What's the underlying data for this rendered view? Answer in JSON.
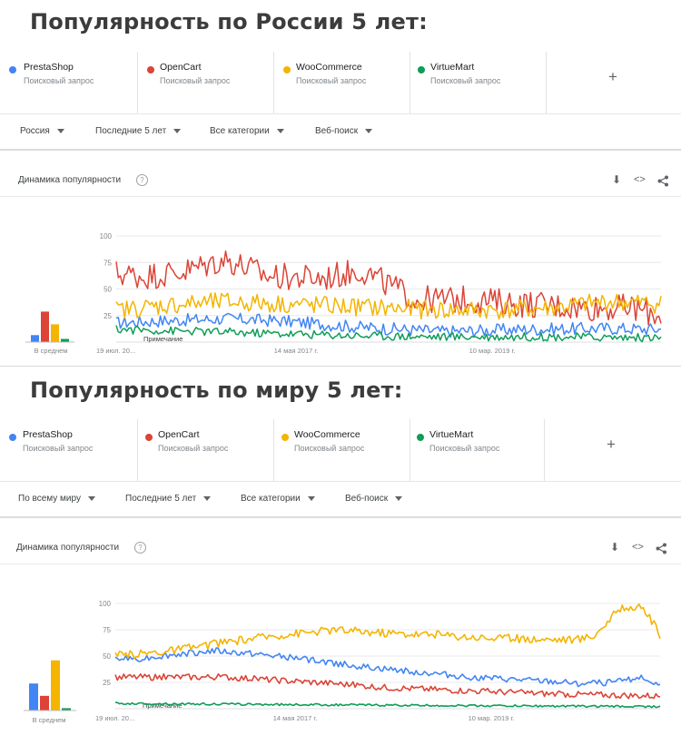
{
  "panels": [
    {
      "heading": "Популярность по России 5 лет:",
      "terms": [
        {
          "name": "PrestaShop",
          "sub": "Поисковый запрос",
          "color": "#4285f4"
        },
        {
          "name": "OpenCart",
          "sub": "Поисковый запрос",
          "color": "#db4437"
        },
        {
          "name": "WooCommerce",
          "sub": "Поисковый запрос",
          "color": "#f4b400"
        },
        {
          "name": "VirtueMart",
          "sub": "Поисковый запрос",
          "color": "#0f9d58"
        }
      ],
      "add_label": "+",
      "filters": [
        "Россия",
        "Последние 5 лет",
        "Все категории",
        "Веб-поиск"
      ],
      "card_title": "Динамика популярности",
      "help_icon": "?",
      "tools": {
        "download": "⬇",
        "embed": "<>",
        "share": "share-icon"
      },
      "avg_label": "В среднем",
      "note": "Примечание"
    },
    {
      "heading": "Популярность по миру 5 лет:",
      "terms": [
        {
          "name": "PrestaShop",
          "sub": "Поисковый запрос",
          "color": "#4285f4"
        },
        {
          "name": "OpenCart",
          "sub": "Поисковый запрос",
          "color": "#db4437"
        },
        {
          "name": "WooCommerce",
          "sub": "Поисковый запрос",
          "color": "#f4b400"
        },
        {
          "name": "VirtueMart",
          "sub": "Поисковый запрос",
          "color": "#0f9d58"
        }
      ],
      "add_label": "+",
      "filters": [
        "По всему миру",
        "Последние 5 лет",
        "Все категории",
        "Веб-поиск"
      ],
      "card_title": "Динамика популярности",
      "help_icon": "?",
      "tools": {
        "download": "⬇",
        "embed": "<>",
        "share": "share-icon"
      },
      "avg_label": "В среднем",
      "note": "Примечание"
    }
  ],
  "chart_data": [
    {
      "type": "line",
      "ylim": [
        0,
        100
      ],
      "yticks": [
        25,
        50,
        75,
        100
      ],
      "xticks": [
        "19 июл. 20...",
        "14 мая 2017 г.",
        "10 мар. 2019 г."
      ],
      "averages": [
        {
          "name": "PrestaShop",
          "value": 11
        },
        {
          "name": "OpenCart",
          "value": 48
        },
        {
          "name": "WooCommerce",
          "value": 28
        },
        {
          "name": "VirtueMart",
          "value": 5
        }
      ],
      "series": [
        {
          "name": "PrestaShop",
          "color": "#4285f4",
          "keyframes": [
            [
              0,
              18
            ],
            [
              0.08,
              20
            ],
            [
              0.2,
              22
            ],
            [
              0.3,
              20
            ],
            [
              0.45,
              14
            ],
            [
              0.6,
              10
            ],
            [
              0.75,
              12
            ],
            [
              0.9,
              13
            ],
            [
              1,
              12
            ]
          ],
          "noise": 6
        },
        {
          "name": "OpenCart",
          "color": "#db4437",
          "keyframes": [
            [
              0,
              65
            ],
            [
              0.05,
              62
            ],
            [
              0.12,
              66
            ],
            [
              0.2,
              78
            ],
            [
              0.28,
              62
            ],
            [
              0.38,
              60
            ],
            [
              0.45,
              68
            ],
            [
              0.55,
              40
            ],
            [
              0.65,
              40
            ],
            [
              0.75,
              36
            ],
            [
              0.85,
              33
            ],
            [
              0.95,
              32
            ],
            [
              1,
              25
            ]
          ],
          "noise": 13
        },
        {
          "name": "WooCommerce",
          "color": "#f4b400",
          "keyframes": [
            [
              0,
              30
            ],
            [
              0.1,
              35
            ],
            [
              0.2,
              38
            ],
            [
              0.3,
              36
            ],
            [
              0.4,
              34
            ],
            [
              0.5,
              32
            ],
            [
              0.6,
              30
            ],
            [
              0.7,
              30
            ],
            [
              0.8,
              32
            ],
            [
              0.9,
              38
            ],
            [
              1,
              36
            ]
          ],
          "noise": 9
        },
        {
          "name": "VirtueMart",
          "color": "#0f9d58",
          "keyframes": [
            [
              0,
              12
            ],
            [
              0.15,
              10
            ],
            [
              0.3,
              8
            ],
            [
              0.45,
              6
            ],
            [
              0.6,
              5
            ],
            [
              0.8,
              5
            ],
            [
              1,
              4
            ]
          ],
          "noise": 4
        }
      ]
    },
    {
      "type": "line",
      "ylim": [
        0,
        100
      ],
      "yticks": [
        25,
        50,
        75,
        100
      ],
      "xticks": [
        "19 июл. 20...",
        "14 мая 2017 г.",
        "10 мар. 2019 г."
      ],
      "averages": [
        {
          "name": "PrestaShop",
          "value": 35
        },
        {
          "name": "OpenCart",
          "value": 19
        },
        {
          "name": "WooCommerce",
          "value": 65
        },
        {
          "name": "VirtueMart",
          "value": 3
        }
      ],
      "series": [
        {
          "name": "PrestaShop",
          "color": "#4285f4",
          "keyframes": [
            [
              0,
              47
            ],
            [
              0.05,
              48
            ],
            [
              0.12,
              52
            ],
            [
              0.18,
              55
            ],
            [
              0.25,
              52
            ],
            [
              0.35,
              47
            ],
            [
              0.45,
              40
            ],
            [
              0.55,
              35
            ],
            [
              0.65,
              30
            ],
            [
              0.75,
              27
            ],
            [
              0.85,
              24
            ],
            [
              0.92,
              25
            ],
            [
              0.96,
              30
            ],
            [
              1,
              22
            ]
          ],
          "noise": 3
        },
        {
          "name": "OpenCart",
          "color": "#db4437",
          "keyframes": [
            [
              0,
              30
            ],
            [
              0.1,
              30
            ],
            [
              0.2,
              30
            ],
            [
              0.3,
              27
            ],
            [
              0.4,
              24
            ],
            [
              0.5,
              20
            ],
            [
              0.6,
              18
            ],
            [
              0.7,
              16
            ],
            [
              0.8,
              14
            ],
            [
              0.9,
              13
            ],
            [
              1,
              12
            ]
          ],
          "noise": 3
        },
        {
          "name": "WooCommerce",
          "color": "#f4b400",
          "keyframes": [
            [
              0,
              50
            ],
            [
              0.1,
              55
            ],
            [
              0.2,
              63
            ],
            [
              0.3,
              70
            ],
            [
              0.4,
              75
            ],
            [
              0.5,
              72
            ],
            [
              0.6,
              70
            ],
            [
              0.7,
              67
            ],
            [
              0.8,
              66
            ],
            [
              0.85,
              66
            ],
            [
              0.88,
              70
            ],
            [
              0.93,
              97
            ],
            [
              0.97,
              95
            ],
            [
              1,
              70
            ]
          ],
          "noise": 4
        },
        {
          "name": "VirtueMart",
          "color": "#0f9d58",
          "keyframes": [
            [
              0,
              5
            ],
            [
              0.3,
              4
            ],
            [
              0.6,
              3
            ],
            [
              1,
              2
            ]
          ],
          "noise": 1
        }
      ]
    }
  ]
}
